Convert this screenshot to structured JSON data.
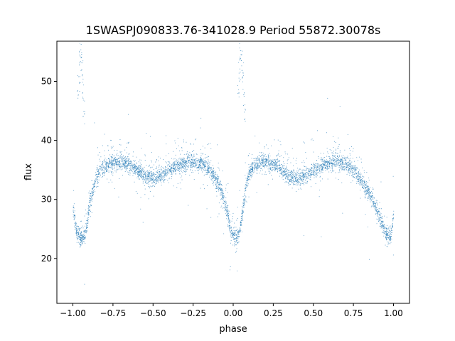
{
  "chart_data": {
    "type": "scatter",
    "title": "1SWASPJ090833.76-341028.9 Period 55872.30078s",
    "xlabel": "phase",
    "ylabel": "flux",
    "xlim": [
      -1.1,
      1.1
    ],
    "ylim": [
      12.4,
      56.8
    ],
    "xticks": [
      -1.0,
      -0.75,
      -0.5,
      -0.25,
      0.0,
      0.25,
      0.5,
      0.75,
      1.0
    ],
    "xtick_labels": [
      "−1.00",
      "−0.75",
      "−0.50",
      "−0.25",
      "0.00",
      "0.25",
      "0.50",
      "0.75",
      "1.00"
    ],
    "yticks": [
      20,
      30,
      40,
      50
    ],
    "ytick_labels": [
      "20",
      "30",
      "40",
      "50"
    ],
    "grid": false,
    "marker_color": "#1f77b4",
    "phased_curve": {
      "phase": [
        -1.0,
        -0.98,
        -0.96,
        -0.94,
        -0.92,
        -0.9,
        -0.87,
        -0.84,
        -0.8,
        -0.75,
        -0.7,
        -0.65,
        -0.6,
        -0.55,
        -0.5,
        -0.45,
        -0.4,
        -0.35,
        -0.3,
        -0.25,
        -0.2,
        -0.15,
        -0.1,
        -0.07,
        -0.04,
        -0.02,
        0.0,
        0.02,
        0.04,
        0.06,
        0.08,
        0.1,
        0.13,
        0.16,
        0.2,
        0.25,
        0.3,
        0.35,
        0.4,
        0.45,
        0.5,
        0.55,
        0.6,
        0.65,
        0.7,
        0.75,
        0.8,
        0.85,
        0.9,
        0.93,
        0.96,
        0.98,
        1.0
      ],
      "flux": [
        28.0,
        25.0,
        23.6,
        23.5,
        24.8,
        28.5,
        32.5,
        34.6,
        35.7,
        36.3,
        36.4,
        36.0,
        35.0,
        34.0,
        33.6,
        34.0,
        35.0,
        35.8,
        36.3,
        36.4,
        36.1,
        35.2,
        33.0,
        31.0,
        28.0,
        25.0,
        23.6,
        23.5,
        24.8,
        28.5,
        32.5,
        34.6,
        35.7,
        36.3,
        36.4,
        36.0,
        35.0,
        34.0,
        33.6,
        34.0,
        35.0,
        35.8,
        36.3,
        36.4,
        36.1,
        35.2,
        33.0,
        31.0,
        28.0,
        25.5,
        24.0,
        23.5,
        27.5
      ]
    },
    "flare_points": {
      "x": [
        -0.97,
        -0.965,
        -0.96,
        -0.955,
        -0.95,
        -0.945,
        -0.94,
        -0.935,
        -0.93,
        0.03,
        0.035,
        0.04,
        0.045,
        0.05,
        0.055,
        0.06,
        0.065,
        0.07
      ],
      "y": [
        48.0,
        51.0,
        53.5,
        55.0,
        54.0,
        52.5,
        50.0,
        47.0,
        44.0,
        48.0,
        51.5,
        54.0,
        55.5,
        54.5,
        52.0,
        50.0,
        47.0,
        44.5
      ]
    }
  }
}
